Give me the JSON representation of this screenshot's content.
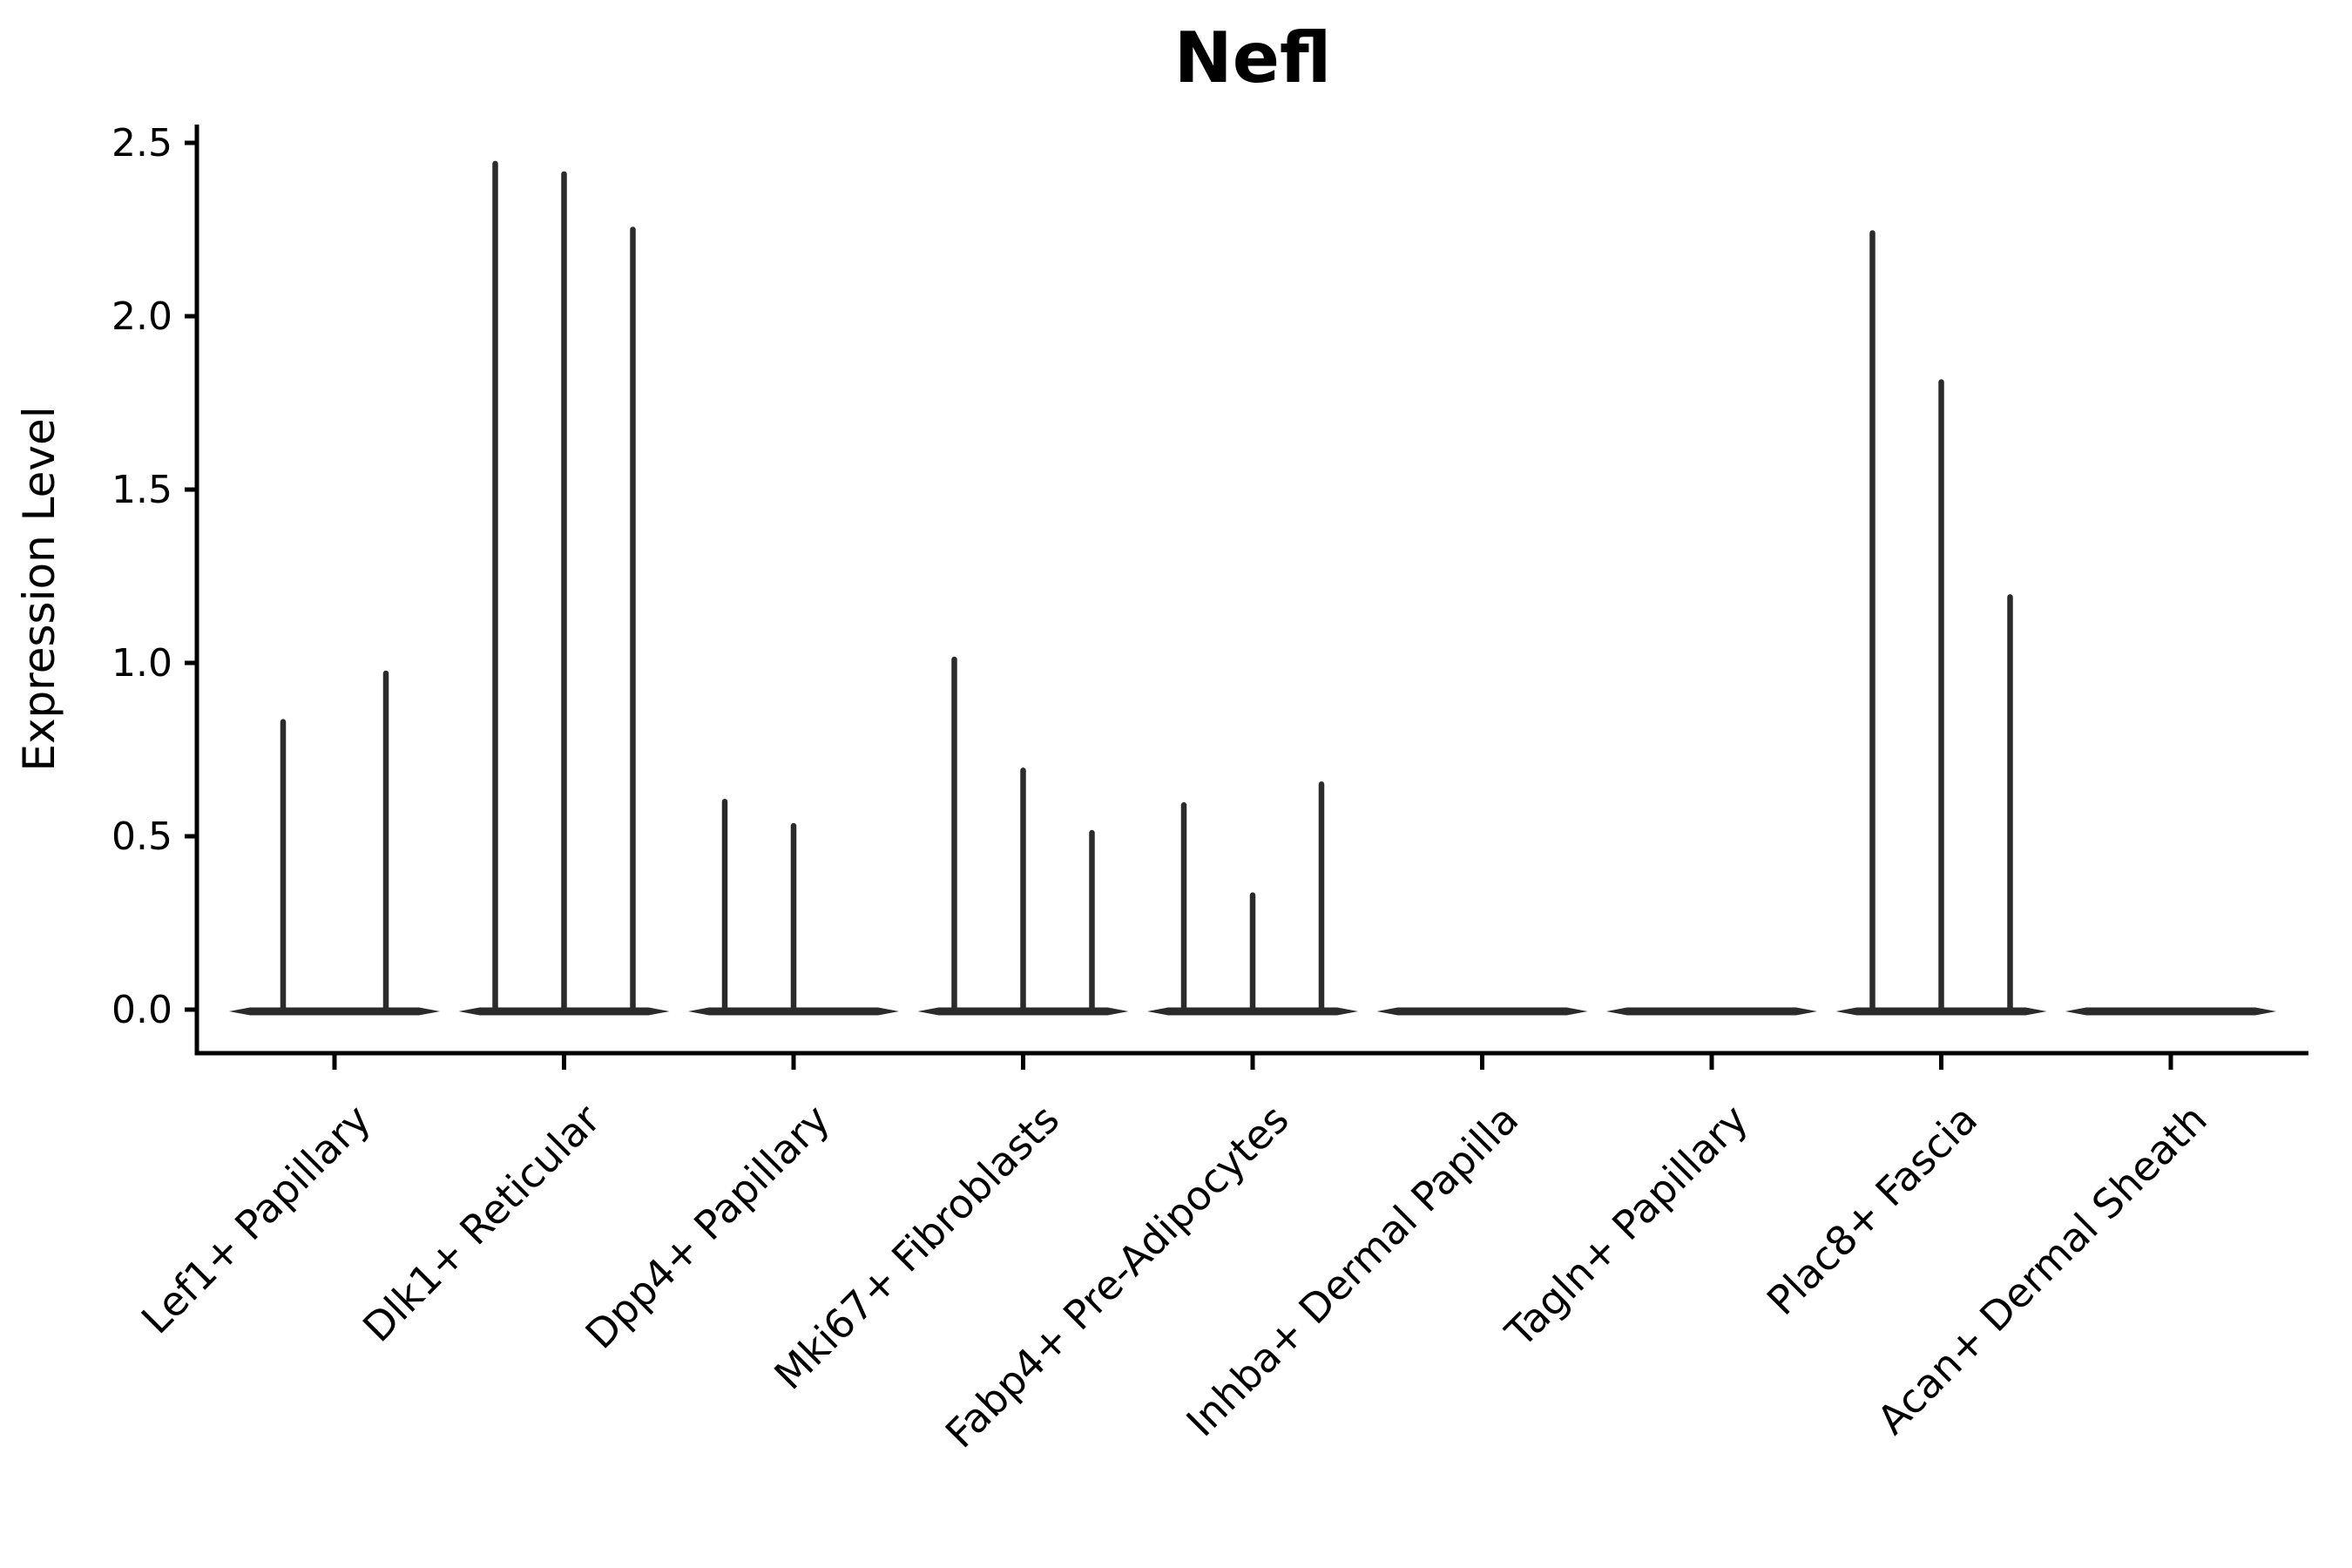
{
  "colors": {
    "background": "#ffffff",
    "axis": "#000000",
    "text": "#000000",
    "violin": "#2b2b2b"
  },
  "chart_data": {
    "type": "violin",
    "title": "Nefl",
    "xlabel": "",
    "ylabel": "Expression Level",
    "ylim": [
      0,
      2.5
    ],
    "grid": false,
    "legend": false,
    "yticks": [
      0.0,
      0.5,
      1.0,
      1.5,
      2.0,
      2.5
    ],
    "ytick_labels": [
      "0.0",
      "0.5",
      "1.0",
      "1.5",
      "2.0",
      "2.5"
    ],
    "categories": [
      "Lef1+ Papillary",
      "Dlk1+ Reticular",
      "Dpp4+ Papillary",
      "Mki67+ Fibroblasts",
      "Fabp4+ Pre-Adipocytes",
      "Inhba+ Dermal Papilla",
      "Tagln+ Papillary",
      "Plac8+ Fascia",
      "Acan+ Dermal Sheath"
    ],
    "groups": [
      {
        "label": "Lef1+ Papillary",
        "baseline_at_zero": true,
        "spikes": [
          {
            "dx": -59,
            "max": 0.83
          },
          {
            "dx": 59,
            "max": 0.97
          }
        ]
      },
      {
        "label": "Dlk1+ Reticular",
        "baseline_at_zero": true,
        "spikes": [
          {
            "dx": -79,
            "max": 2.44
          },
          {
            "dx": 0,
            "max": 2.41
          },
          {
            "dx": 79,
            "max": 2.25
          }
        ]
      },
      {
        "label": "Dpp4+ Papillary",
        "baseline_at_zero": true,
        "spikes": [
          {
            "dx": -79,
            "max": 0.6
          },
          {
            "dx": 0,
            "max": 0.53
          }
        ]
      },
      {
        "label": "Mki67+ Fibroblasts",
        "baseline_at_zero": true,
        "spikes": [
          {
            "dx": -79,
            "max": 1.01
          },
          {
            "dx": 0,
            "max": 0.69
          },
          {
            "dx": 79,
            "max": 0.51
          }
        ]
      },
      {
        "label": "Fabp4+ Pre-Adipocytes",
        "baseline_at_zero": true,
        "spikes": [
          {
            "dx": -79,
            "max": 0.59
          },
          {
            "dx": 0,
            "max": 0.33
          },
          {
            "dx": 79,
            "max": 0.65
          }
        ]
      },
      {
        "label": "Inhba+ Dermal Papilla",
        "baseline_at_zero": true,
        "spikes": []
      },
      {
        "label": "Tagln+ Papillary",
        "baseline_at_zero": true,
        "spikes": []
      },
      {
        "label": "Plac8+ Fascia",
        "baseline_at_zero": true,
        "spikes": [
          {
            "dx": -79,
            "max": 2.24
          },
          {
            "dx": 0,
            "max": 1.81
          },
          {
            "dx": 79,
            "max": 1.19
          }
        ]
      },
      {
        "label": "Acan+ Dermal Sheath",
        "baseline_at_zero": true,
        "spikes": []
      }
    ]
  }
}
